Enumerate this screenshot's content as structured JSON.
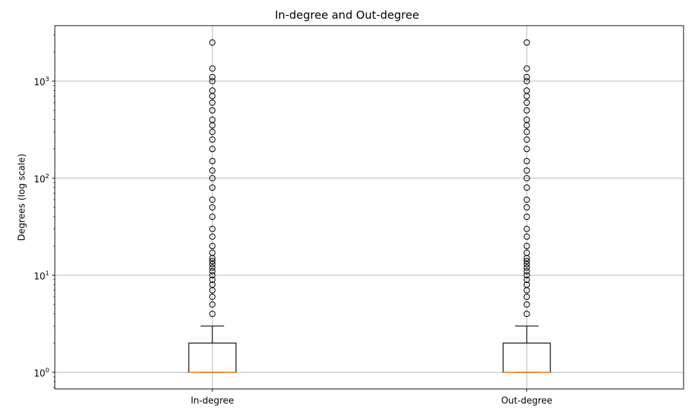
{
  "chart_data": {
    "type": "box",
    "title": "In-degree and Out-degree",
    "xlabel": "",
    "ylabel": "Degrees (log scale)",
    "yscale": "log",
    "ylim": [
      0.7,
      3700
    ],
    "yticks": [
      {
        "value": 1,
        "base": "10",
        "exponent": "0"
      },
      {
        "value": 10,
        "base": "10",
        "exponent": "1"
      },
      {
        "value": 100,
        "base": "10",
        "exponent": "2"
      },
      {
        "value": 1000,
        "base": "10",
        "exponent": "3"
      }
    ],
    "grid": true,
    "colors": {
      "box": "#000000",
      "median": "#ff7f0e",
      "grid": "#b0b0b0"
    },
    "categories": [
      "In-degree",
      "Out-degree"
    ],
    "boxes": [
      {
        "label": "In-degree",
        "q1": 1,
        "median": 1,
        "q3": 2,
        "whisker_low": 1,
        "whisker_high": 3,
        "outliers": [
          4,
          5,
          6,
          7,
          8,
          9,
          10,
          11,
          12,
          13,
          14,
          15,
          17,
          20,
          25,
          30,
          40,
          50,
          60,
          80,
          100,
          120,
          150,
          200,
          250,
          300,
          350,
          400,
          500,
          600,
          700,
          800,
          1000,
          1100,
          1350,
          2500
        ]
      },
      {
        "label": "Out-degree",
        "q1": 1,
        "median": 1,
        "q3": 2,
        "whisker_low": 1,
        "whisker_high": 3,
        "outliers": [
          4,
          5,
          6,
          7,
          8,
          9,
          10,
          11,
          12,
          13,
          14,
          15,
          17,
          20,
          25,
          30,
          40,
          50,
          60,
          80,
          100,
          120,
          150,
          200,
          250,
          300,
          350,
          400,
          500,
          600,
          700,
          800,
          1000,
          1100,
          1350,
          2500
        ]
      }
    ]
  }
}
